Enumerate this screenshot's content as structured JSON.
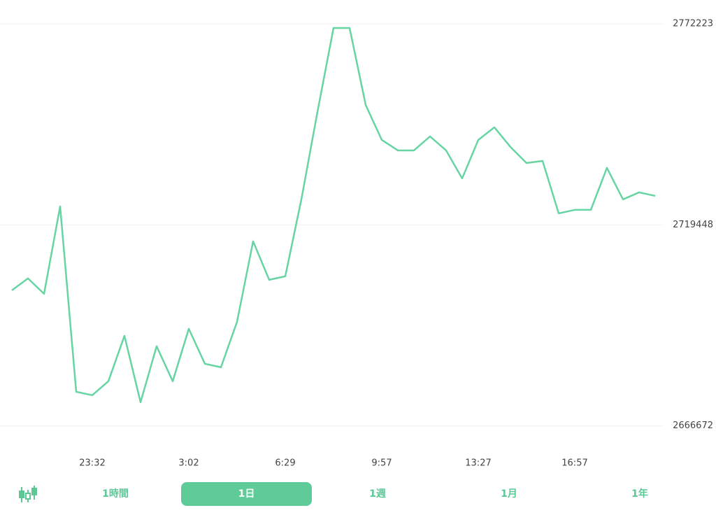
{
  "chart_data": {
    "type": "line",
    "categories": [
      null,
      null,
      null,
      null,
      null,
      "23:32",
      null,
      null,
      null,
      null,
      null,
      "3:02",
      null,
      null,
      null,
      null,
      null,
      "6:29",
      null,
      null,
      null,
      null,
      null,
      "9:57",
      null,
      null,
      null,
      null,
      null,
      "13:27",
      null,
      null,
      null,
      null,
      null,
      "16:57",
      null,
      null,
      null,
      null,
      null
    ],
    "series": [
      {
        "color": "#66d4a3",
        "values": [
          2702271,
          2705393,
          2701353,
          2724303,
          2675649,
          2674731,
          2678403,
          2690337,
          2672895,
          2687583,
          2678403,
          2692173,
          2682993,
          2682075,
          2694009,
          2715123,
          2705025,
          2705943,
          2726139,
          2749089,
          2771121,
          2771121,
          2750925,
          2741745,
          2738991,
          2738991,
          2742663,
          2738991,
          2731647,
          2741745,
          2745050,
          2739909,
          2735687,
          2736237,
          2722467,
          2723385,
          2723385,
          2734401,
          2726139,
          2727975,
          2727057
        ]
      }
    ],
    "ylim": [
      2664600,
      2774800
    ],
    "yticks": [
      2666672,
      2719448,
      2772223
    ],
    "grid": true
  },
  "range_buttons": [
    "1時間",
    "1日",
    "1週",
    "1月",
    "1年"
  ]
}
